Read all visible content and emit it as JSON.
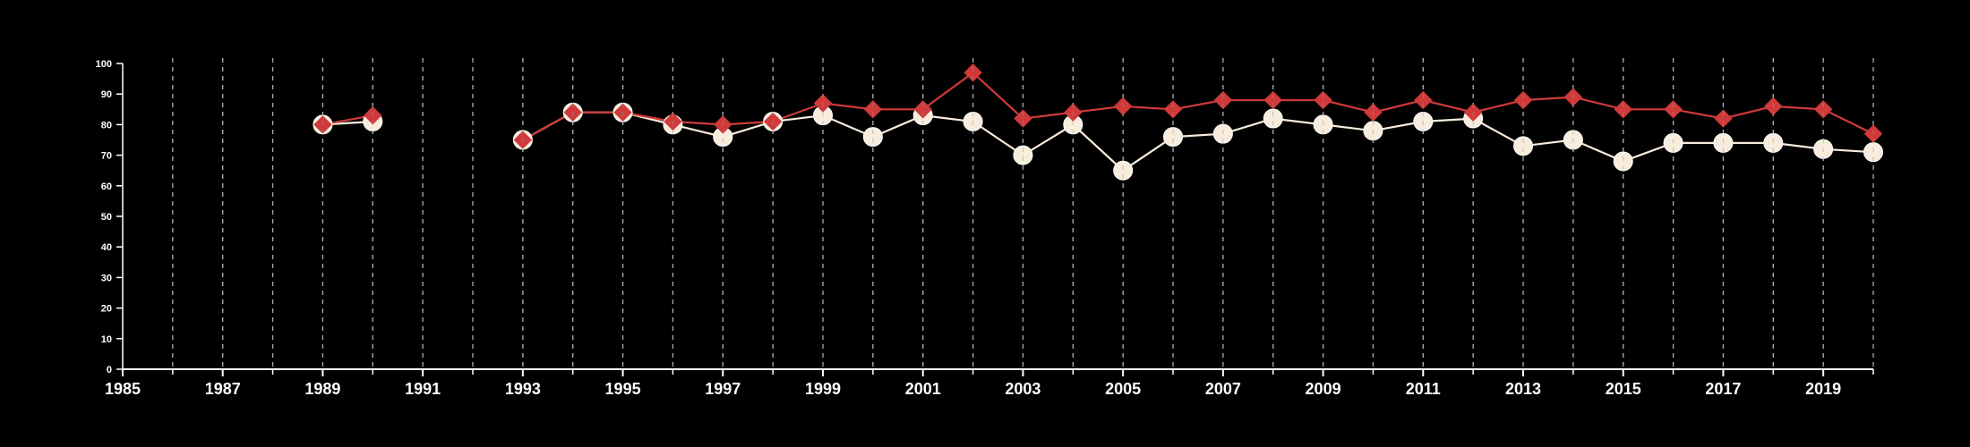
{
  "chart_data": {
    "type": "line",
    "title": "",
    "xlabel": "",
    "ylabel": "",
    "xlim": [
      1985,
      2020
    ],
    "ylim": [
      0,
      100
    ],
    "y_ticks": [
      0,
      10,
      20,
      30,
      40,
      50,
      60,
      70,
      80,
      90,
      100
    ],
    "x_ticks": [
      1985,
      1987,
      1989,
      1991,
      1993,
      1995,
      1997,
      1999,
      2001,
      2003,
      2005,
      2007,
      2009,
      2011,
      2013,
      2015,
      2017,
      2019
    ],
    "x_minor_ticks": [
      1986,
      1988,
      1990,
      1992,
      1994,
      1996,
      1998,
      2000,
      2002,
      2004,
      2006,
      2008,
      2010,
      2012,
      2014,
      2016,
      2018,
      2020
    ],
    "grid": "vertical dashed gridlines at every year from 1986 to 2020",
    "legend": "none",
    "background": "#000000",
    "series": [
      {
        "marker": "diamond",
        "color": "#d03a3a",
        "points": [
          {
            "x": 1989,
            "y": 80
          },
          {
            "x": 1990,
            "y": 83
          },
          {
            "x": 1993,
            "y": 75
          },
          {
            "x": 1994,
            "y": 84
          },
          {
            "x": 1995,
            "y": 84
          },
          {
            "x": 1996,
            "y": 81
          },
          {
            "x": 1997,
            "y": 80
          },
          {
            "x": 1998,
            "y": 81
          },
          {
            "x": 1999,
            "y": 87
          },
          {
            "x": 2000,
            "y": 85
          },
          {
            "x": 2001,
            "y": 85
          },
          {
            "x": 2002,
            "y": 97
          },
          {
            "x": 2003,
            "y": 82
          },
          {
            "x": 2004,
            "y": 84
          },
          {
            "x": 2005,
            "y": 86
          },
          {
            "x": 2006,
            "y": 85
          },
          {
            "x": 2007,
            "y": 88
          },
          {
            "x": 2008,
            "y": 88
          },
          {
            "x": 2009,
            "y": 88
          },
          {
            "x": 2010,
            "y": 84
          },
          {
            "x": 2011,
            "y": 88
          },
          {
            "x": 2012,
            "y": 84
          },
          {
            "x": 2013,
            "y": 88
          },
          {
            "x": 2014,
            "y": 89
          },
          {
            "x": 2015,
            "y": 85
          },
          {
            "x": 2016,
            "y": 85
          },
          {
            "x": 2017,
            "y": 82
          },
          {
            "x": 2018,
            "y": 86
          },
          {
            "x": 2019,
            "y": 85
          },
          {
            "x": 2020,
            "y": 77
          }
        ]
      },
      {
        "marker": "circle",
        "color": "#f8ecdc",
        "points": [
          {
            "x": 1989,
            "y": 80
          },
          {
            "x": 1990,
            "y": 81
          },
          {
            "x": 1993,
            "y": 75
          },
          {
            "x": 1994,
            "y": 84
          },
          {
            "x": 1995,
            "y": 84
          },
          {
            "x": 1996,
            "y": 80
          },
          {
            "x": 1997,
            "y": 76
          },
          {
            "x": 1998,
            "y": 81
          },
          {
            "x": 1999,
            "y": 83
          },
          {
            "x": 2000,
            "y": 76
          },
          {
            "x": 2001,
            "y": 83
          },
          {
            "x": 2002,
            "y": 81
          },
          {
            "x": 2003,
            "y": 70
          },
          {
            "x": 2004,
            "y": 80
          },
          {
            "x": 2005,
            "y": 65
          },
          {
            "x": 2006,
            "y": 76
          },
          {
            "x": 2007,
            "y": 77
          },
          {
            "x": 2008,
            "y": 82
          },
          {
            "x": 2009,
            "y": 80
          },
          {
            "x": 2010,
            "y": 78
          },
          {
            "x": 2011,
            "y": 81
          },
          {
            "x": 2012,
            "y": 82
          },
          {
            "x": 2013,
            "y": 73
          },
          {
            "x": 2014,
            "y": 75
          },
          {
            "x": 2015,
            "y": 68
          },
          {
            "x": 2016,
            "y": 74
          },
          {
            "x": 2017,
            "y": 74
          },
          {
            "x": 2018,
            "y": 74
          },
          {
            "x": 2019,
            "y": 72
          },
          {
            "x": 2020,
            "y": 71
          }
        ]
      }
    ]
  }
}
